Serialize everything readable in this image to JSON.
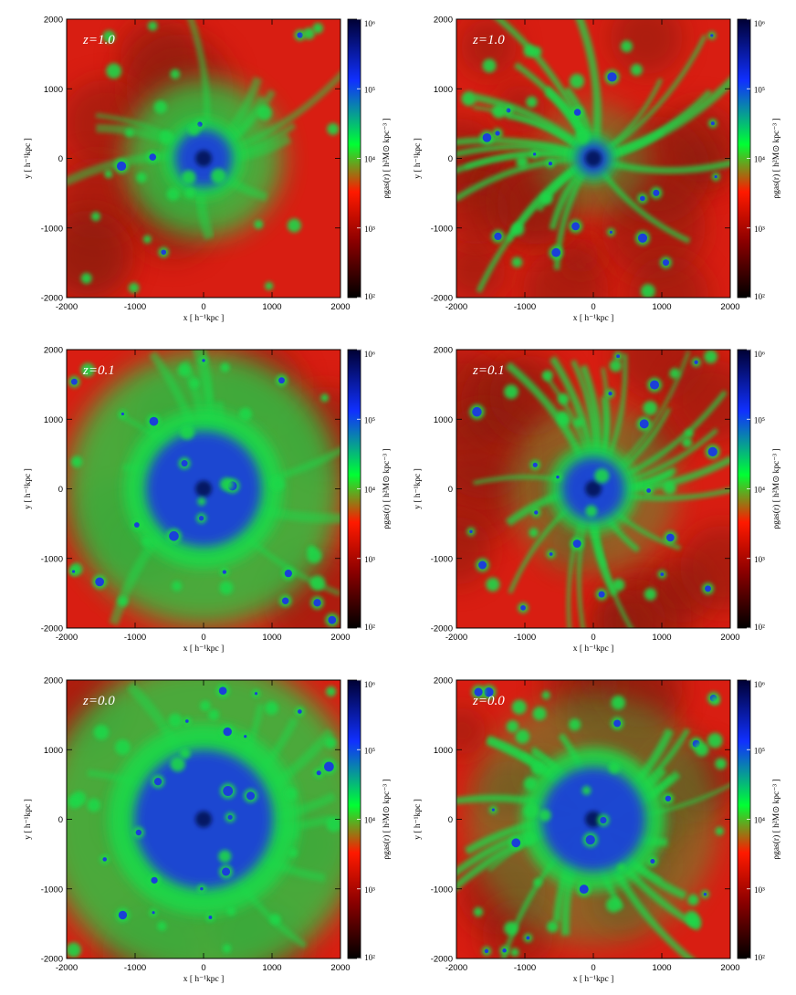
{
  "colors": {
    "background": "#d81e12",
    "outskirts": "#8a1a10",
    "filament": "#1fd84a",
    "core": "#1a38e0",
    "core_dark": "#06104a"
  },
  "colorbar": {
    "label": "ρgas(r) [ h²M⊙ kpc⁻³ ]",
    "scale": "log",
    "range": [
      100,
      1000000
    ],
    "ticks": [
      "10²",
      "10³",
      "10⁴",
      "10⁵",
      "10⁶"
    ],
    "stops": [
      "#000000",
      "#8a0000",
      "#ff1a00",
      "#00ff33",
      "#1030ff",
      "#000033"
    ]
  },
  "axes": {
    "xlabel": "x [ h⁻¹kpc ]",
    "ylabel": "y [ h⁻¹kpc ]",
    "xlim": [
      -2000,
      2000
    ],
    "ylim": [
      -2000,
      2000
    ],
    "xticks": [
      "-2000",
      "-1000",
      "0",
      "1000",
      "2000"
    ],
    "yticks": [
      "-2000",
      "-1000",
      "0",
      "1000",
      "2000"
    ]
  },
  "chart_data": [
    {
      "type": "heatmap",
      "redshift": "z=1.0",
      "column": "left",
      "x": [
        -2000,
        2000
      ],
      "y": [
        -2000,
        2000
      ],
      "core": [
        0,
        0
      ],
      "core_extent": 400
    },
    {
      "type": "heatmap",
      "redshift": "z=1.0",
      "column": "right",
      "x": [
        -2000,
        2000
      ],
      "y": [
        -2000,
        2000
      ],
      "core": [
        0,
        0
      ],
      "core_extent": 200
    },
    {
      "type": "heatmap",
      "redshift": "z=0.1",
      "column": "left",
      "x": [
        -2000,
        2000
      ],
      "y": [
        -2000,
        2000
      ],
      "core": [
        0,
        0
      ],
      "core_extent": 900
    },
    {
      "type": "heatmap",
      "redshift": "z=0.1",
      "column": "right",
      "x": [
        -2000,
        2000
      ],
      "y": [
        -2000,
        2000
      ],
      "core": [
        0,
        0
      ],
      "core_extent": 450
    },
    {
      "type": "heatmap",
      "redshift": "z=0.0",
      "column": "left",
      "x": [
        -2000,
        2000
      ],
      "y": [
        -2000,
        2000
      ],
      "core": [
        0,
        0
      ],
      "core_extent": 1100
    },
    {
      "type": "heatmap",
      "redshift": "z=0.0",
      "column": "right",
      "x": [
        -2000,
        2000
      ],
      "y": [
        -2000,
        2000
      ],
      "core": [
        0,
        0
      ],
      "core_extent": 800
    }
  ]
}
